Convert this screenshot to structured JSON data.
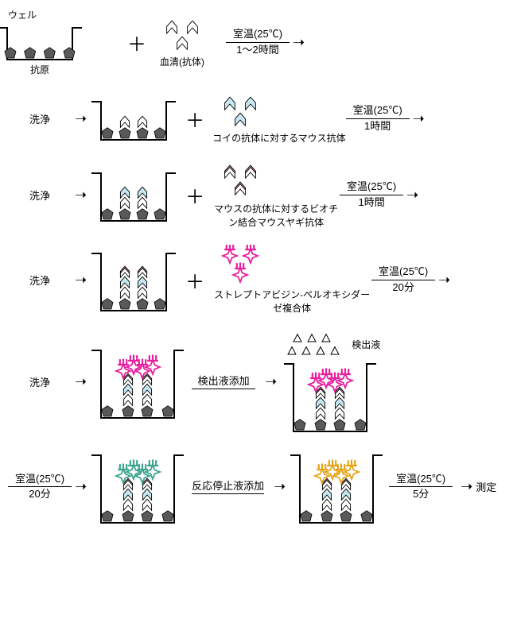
{
  "colors": {
    "stroke": "#000000",
    "antigen_fill": "#595959",
    "chevron_white": "#ffffff",
    "chevron_cyan": "#c7e8f0",
    "chevron_pink": "#f2a6c9",
    "star_magenta": "#e91e9e",
    "star_teal": "#3da38f",
    "star_orange": "#e6a417",
    "crown_magenta": "#e91e9e",
    "crown_teal": "#3da38f",
    "crown_orange": "#e6a417",
    "triangle": "#ffffff"
  },
  "labels": {
    "well": "ウェル",
    "antigen": "抗原",
    "serum": "血清(抗体)",
    "wash": "洗浄",
    "mouse_anti_koi": "コイの抗体に対するマウス抗体",
    "biotin_goat": "マウスの抗体に対するビオチン結合マウスヤギ抗体",
    "sa_pod": "ストレプトアビジン‐ペルオキシダーゼ複合体",
    "detect_sol": "検出液",
    "add_detect": "検出液添加",
    "add_stop": "反応停止液添加",
    "measure": "測定"
  },
  "conditions": {
    "rt": "室温(25℃)",
    "t12h": "1～2時間",
    "t1h": "1時間",
    "t20m": "20分",
    "t5m": "5分"
  }
}
